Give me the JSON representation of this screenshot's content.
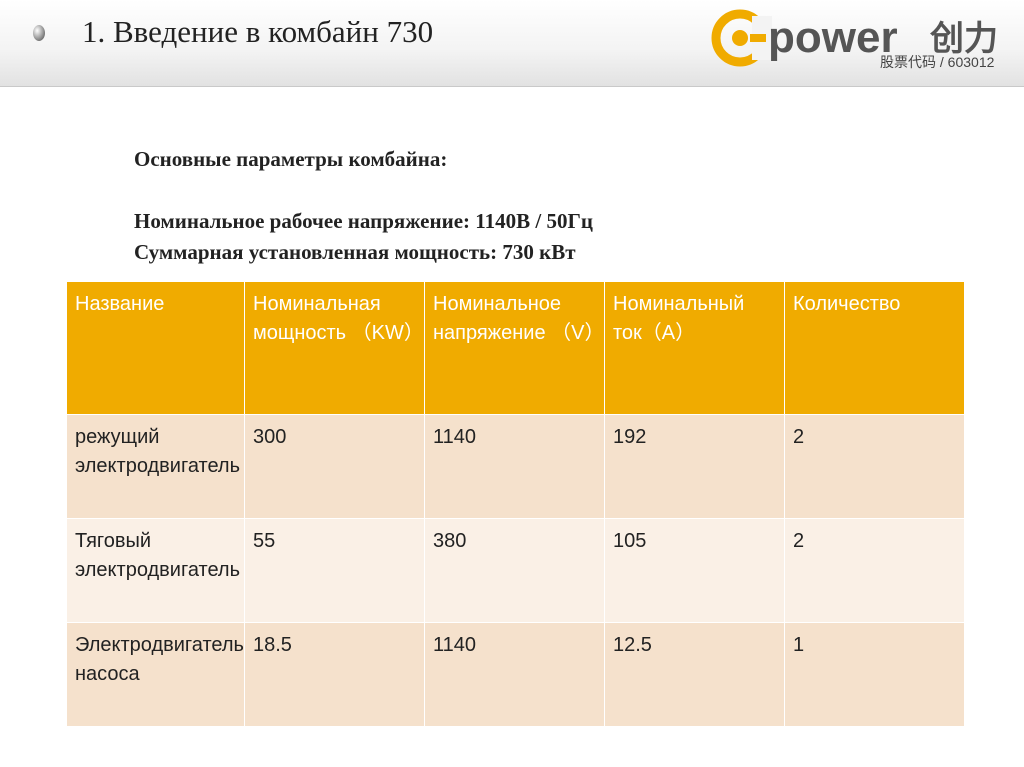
{
  "slide": {
    "title": "1. Введение в комбайн 730"
  },
  "logo": {
    "brand": "power",
    "brand_cn": "创力",
    "stock": "股票代码 / 603012",
    "accent": "#f0ab00"
  },
  "params": {
    "heading": "Основные параметры комбайна:",
    "voltage": "Номинальное рабочее напряжение: 1140В / 50Гц",
    "power": "Суммарная установленная мощность: 730 кВт"
  },
  "table": {
    "headers": [
      "Название",
      "Номинальная мощность （KW）",
      "Номинальное напряжение （V）",
      "Номинальный ток（A）",
      "Количество"
    ],
    "rows": [
      [
        "режущий электродвигатель",
        "300",
        "1140",
        "192",
        "2"
      ],
      [
        "Тяговый электродвигатель",
        "55",
        "380",
        "105",
        "2"
      ],
      [
        "Электродвигатель насоса",
        "18.5",
        "1140",
        "12.5",
        "1"
      ]
    ]
  }
}
